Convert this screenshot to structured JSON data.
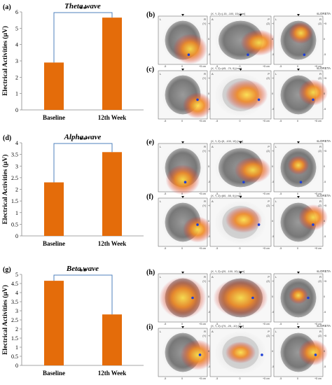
{
  "figure": {
    "common": {
      "ylabel": "Electrical Activities (μV)"
    },
    "chart_data": [
      {
        "type": "bar",
        "panel": "(a)",
        "title": "Theta wave",
        "categories": [
          "Baseline",
          "12th Week"
        ],
        "values": [
          2.9,
          5.65
        ],
        "ylabel": "Electrical Activities (μV)",
        "ylim": [
          0,
          6
        ],
        "yticks": [
          0,
          1,
          2,
          3,
          4,
          5,
          6
        ],
        "significance": "**",
        "bar_color": "#e46c0a",
        "bracket_color": "#4f81bd"
      },
      {
        "type": "bar",
        "panel": "(d)",
        "title": "Alpha wave",
        "categories": [
          "Baseline",
          "12th Week"
        ],
        "values": [
          2.3,
          3.6
        ],
        "ylabel": "Electrical Activities (μV)",
        "ylim": [
          0,
          4
        ],
        "yticks": [
          0,
          0.5,
          1,
          1.5,
          2,
          2.5,
          3,
          3.5,
          4
        ],
        "significance": "**",
        "bar_color": "#e46c0a",
        "bracket_color": "#4f81bd"
      },
      {
        "type": "bar",
        "panel": "(g)",
        "title": "Beta wave",
        "categories": [
          "Baseline",
          "12th Week"
        ],
        "values": [
          4.65,
          2.8
        ],
        "ylabel": "Electrical Activities (μV)",
        "ylim": [
          0,
          5
        ],
        "yticks": [
          0,
          0.5,
          1,
          1.5,
          2,
          2.5,
          3,
          3.5,
          4,
          4.5,
          5
        ],
        "significance": "**",
        "bar_color": "#e46c0a",
        "bracket_color": "#4f81bd"
      }
    ],
    "brain_panels": [
      {
        "label": "(b)",
        "logo": "sLORETA",
        "coords": "(X, Y, Z)=(-15, -100, 15) [mm]"
      },
      {
        "label": "(c)",
        "logo": "sLORETA",
        "coords": "(X, Y, Z)=(45, -70, 0) [mm]"
      },
      {
        "label": "(e)",
        "logo": "sLORETA",
        "coords": "(X, Y, Z)=(5, -100, 10) [mm]"
      },
      {
        "label": "(f)",
        "logo": "sLORETA",
        "coords": "(X, Y, Z)=(60, -55, 0) [mm]"
      },
      {
        "label": "(h)",
        "logo": "sLORETA",
        "coords": "(X, Y, Z)=(20, -100, 10) [mm]"
      },
      {
        "label": "(i)",
        "logo": "sLORETA",
        "coords": "(X, Y, Z)=(70, -25, -10) [mm]"
      }
    ],
    "view_labels": {
      "axial": [
        "L",
        "R",
        "(Y)"
      ],
      "sagittal": [
        "A",
        "P",
        "(Z)"
      ],
      "coronal": [
        "L",
        "R",
        "(Z)"
      ]
    },
    "axis_ticks": {
      "scale": [
        "-5",
        "0",
        "+5 cm"
      ],
      "side": [
        "+5",
        "0",
        "-5"
      ]
    },
    "heat_colors": {
      "red": "#d9262b",
      "orange": "#f08a24",
      "yellow": "#ffe24a",
      "marker": "#1f3fd6"
    }
  }
}
